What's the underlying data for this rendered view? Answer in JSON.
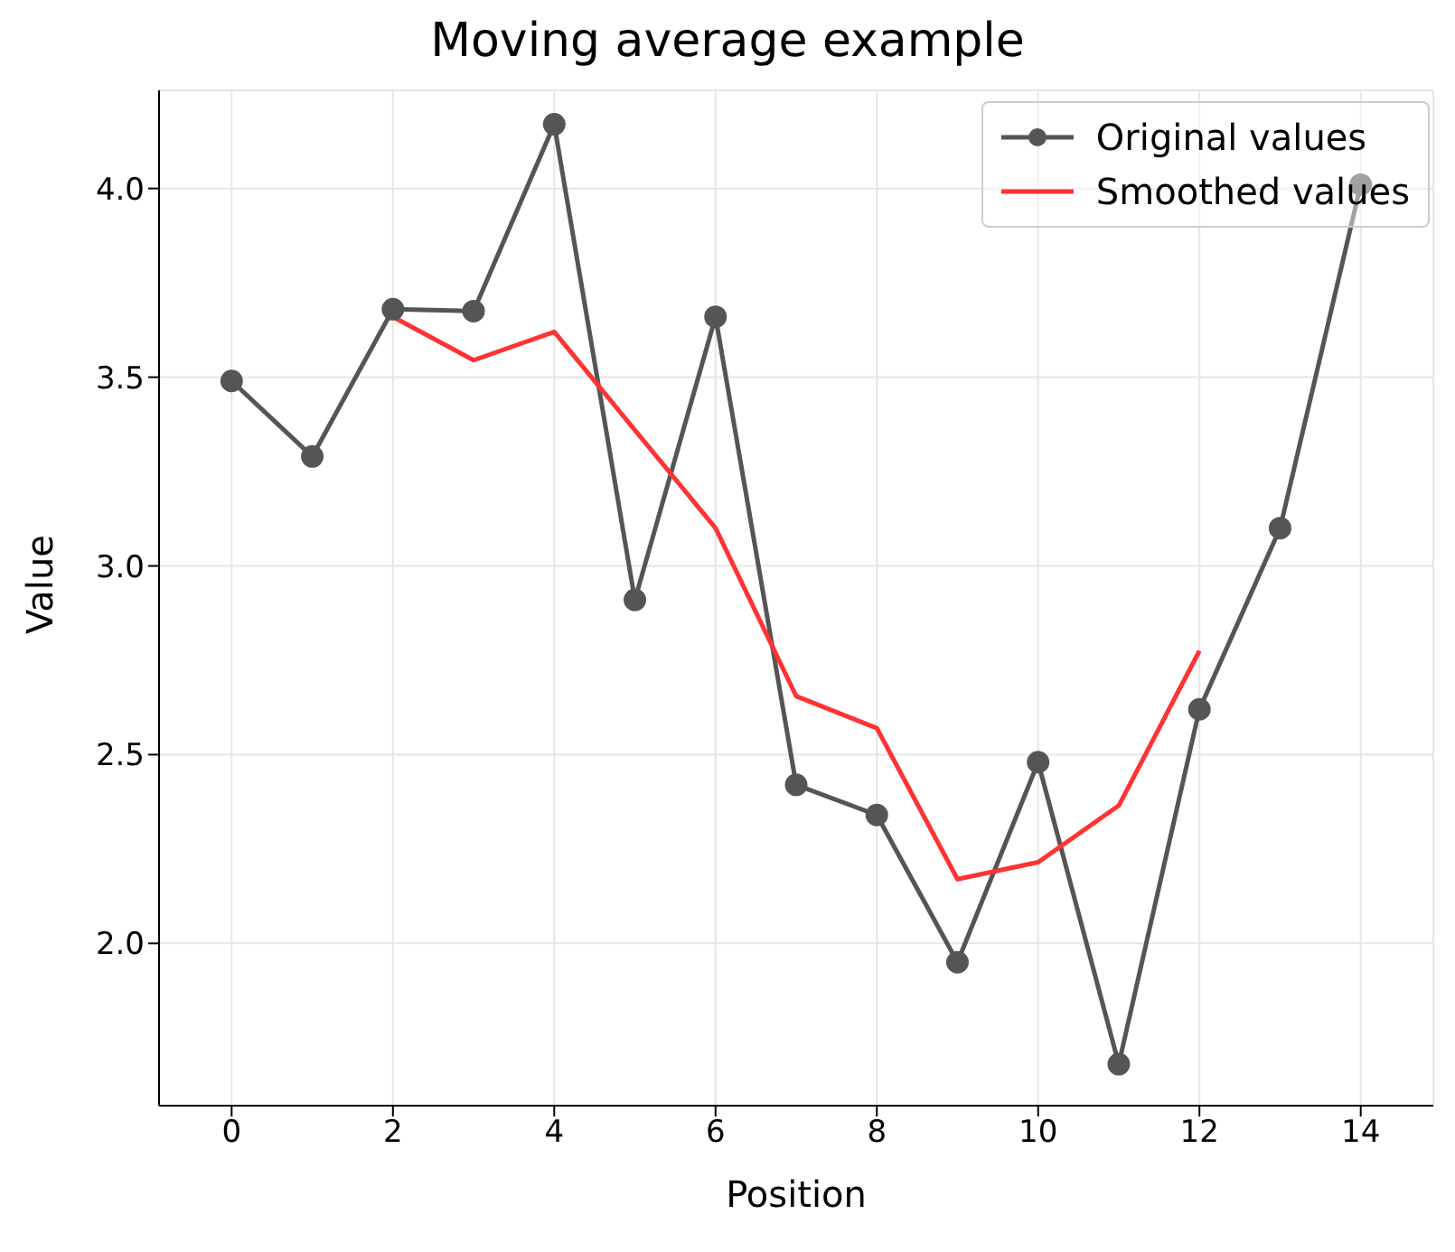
{
  "chart_data": {
    "type": "line",
    "title": "Moving average example",
    "xlabel": "Position",
    "ylabel": "Value",
    "x": [
      0,
      1,
      2,
      3,
      4,
      5,
      6,
      7,
      8,
      9,
      10,
      11,
      12,
      13,
      14
    ],
    "series": [
      {
        "name": "Original values",
        "color": "#555555",
        "marker": "circle",
        "values": [
          3.49,
          3.29,
          3.68,
          3.675,
          4.17,
          2.91,
          3.66,
          2.42,
          2.34,
          1.95,
          2.48,
          1.68,
          2.62,
          3.1,
          4.01
        ]
      },
      {
        "name": "Smoothed values",
        "color": "#ff3333",
        "marker": "none",
        "values": [
          null,
          null,
          3.66,
          3.545,
          3.62,
          3.36,
          3.1,
          2.655,
          2.57,
          2.17,
          2.215,
          2.365,
          2.775,
          null,
          null
        ]
      }
    ],
    "xlim": [
      -0.9,
      14.9
    ],
    "xticks": [
      0,
      2,
      4,
      6,
      8,
      10,
      12,
      14
    ],
    "ylim": [
      1.57,
      4.26
    ],
    "yticks": [
      {
        "value": 2,
        "label": "2.0"
      },
      {
        "value": 2.5,
        "label": "2.5"
      },
      {
        "value": 3,
        "label": "3.0"
      },
      {
        "value": 3.5,
        "label": "3.5"
      },
      {
        "value": 4,
        "label": "4.0"
      }
    ],
    "grid": true,
    "legend": "top right"
  }
}
